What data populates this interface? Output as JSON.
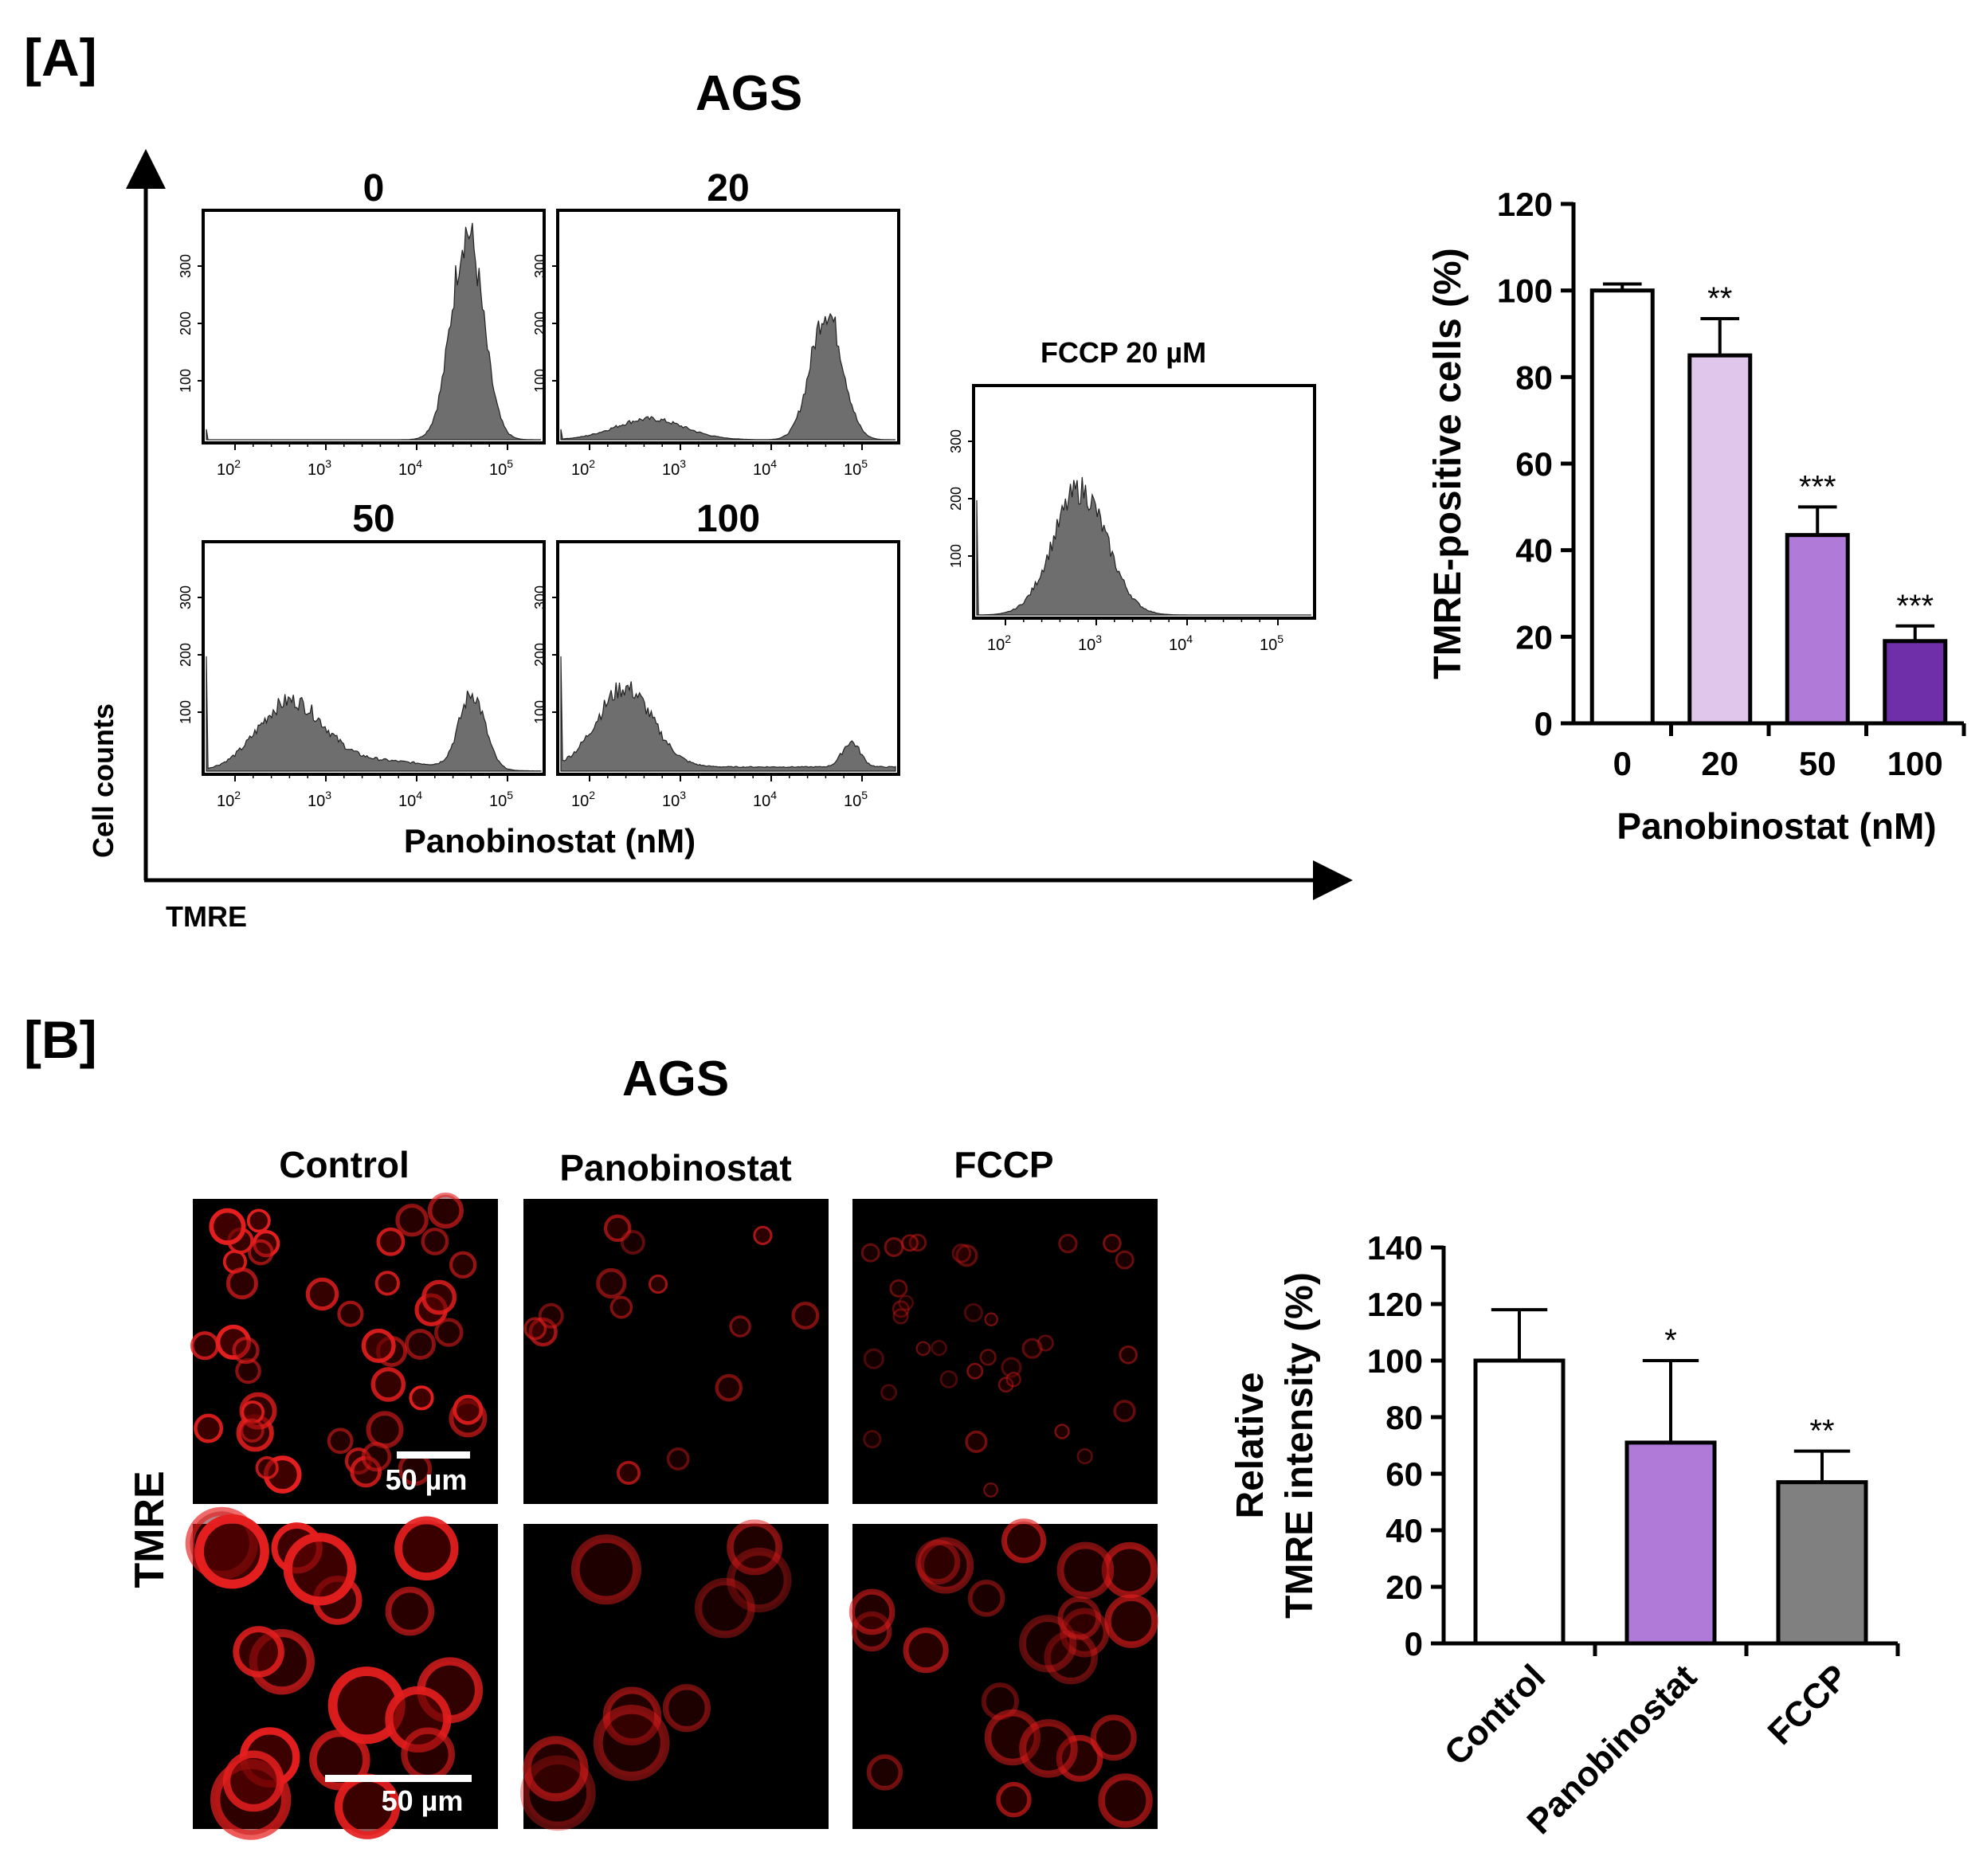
{
  "panel_a": {
    "label": "[A]",
    "title": "AGS",
    "flow": {
      "y_axis_label": "Cell counts",
      "x_axis_label": "TMRE",
      "middle_label": "Panobinostat (nM)",
      "y_ticks": [
        "300",
        "200",
        "100"
      ],
      "x_ticks": [
        {
          "base": "10",
          "exp": "2"
        },
        {
          "base": "10",
          "exp": "3"
        },
        {
          "base": "10",
          "exp": "4"
        },
        {
          "base": "10",
          "exp": "5"
        }
      ],
      "panels": [
        {
          "title": "0"
        },
        {
          "title": "20"
        },
        {
          "title": "50"
        },
        {
          "title": "100"
        },
        {
          "title": "FCCP 20 µM"
        }
      ]
    }
  },
  "panel_b": {
    "label": "[B]",
    "title": "AGS",
    "row_label": "TMRE",
    "columns": [
      "Control",
      "Panobinostat",
      "FCCP"
    ],
    "scale_bars": [
      "50 µm",
      "50 µm"
    ]
  },
  "chart_data": [
    {
      "type": "bar",
      "categories": [
        "0",
        "20",
        "50",
        "100"
      ],
      "values": [
        100,
        85,
        43.5,
        19
      ],
      "errors": [
        1.5,
        8.5,
        6.5,
        3.5
      ],
      "significance": [
        "",
        "**",
        "***",
        "***"
      ],
      "colors": [
        "#ffffff",
        "#dfc6ea",
        "#b07ad8",
        "#6f2fa8"
      ],
      "xlabel": "Panobinostat (nM)",
      "ylabel": "TMRE-positive cells (%)",
      "ylim": [
        0,
        120
      ],
      "yticks": [
        0,
        20,
        40,
        60,
        80,
        100,
        120
      ]
    },
    {
      "type": "bar",
      "categories": [
        "Control",
        "Panobinostat",
        "FCCP"
      ],
      "values": [
        100,
        71,
        57
      ],
      "errors": [
        18,
        29,
        11
      ],
      "significance": [
        "",
        "*",
        "**"
      ],
      "colors": [
        "#ffffff",
        "#b07ad8",
        "#808080"
      ],
      "xlabel": "",
      "ylabel": "Relative TMRE intensity (%)",
      "ylabel_lines": [
        "Relative",
        "TMRE intensity (%)"
      ],
      "ylim": [
        0,
        140
      ],
      "yticks": [
        0,
        20,
        40,
        60,
        80,
        100,
        120,
        140
      ]
    }
  ]
}
